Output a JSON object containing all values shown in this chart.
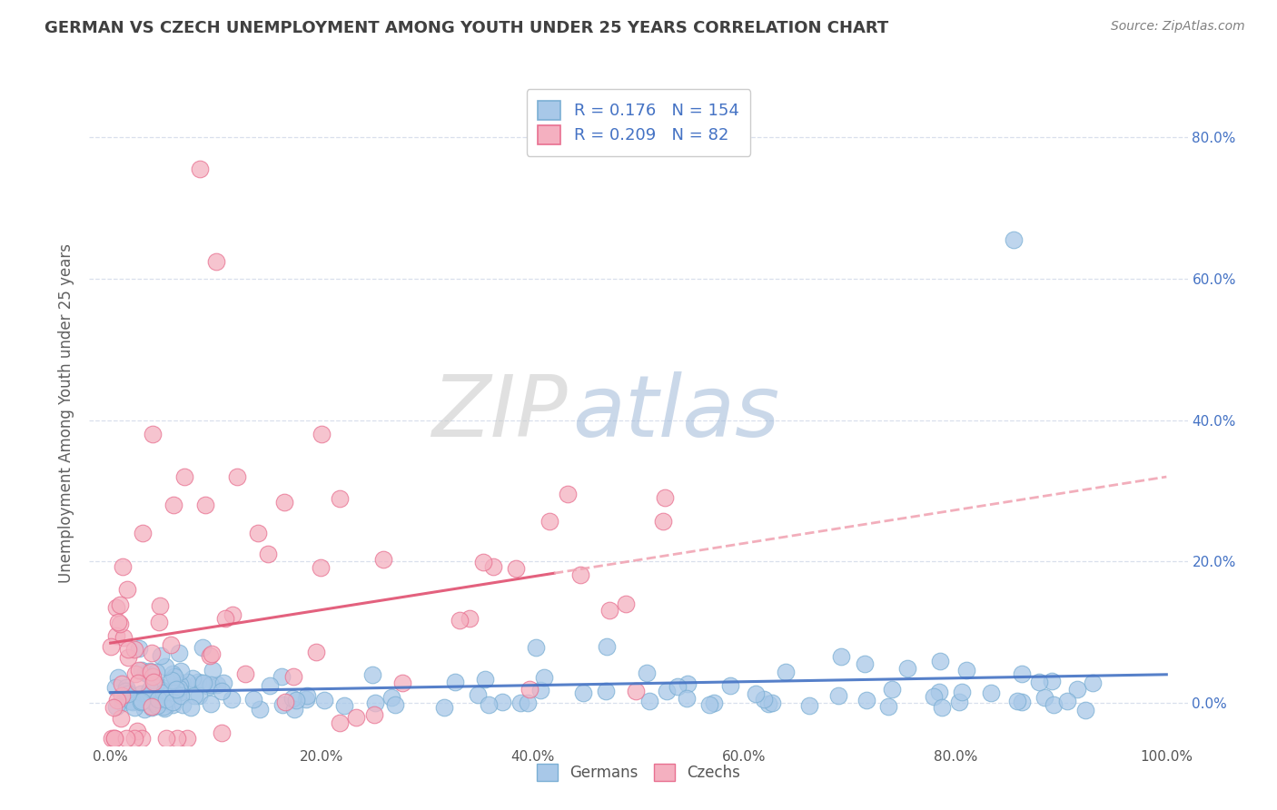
{
  "title": "GERMAN VS CZECH UNEMPLOYMENT AMONG YOUTH UNDER 25 YEARS CORRELATION CHART",
  "source": "Source: ZipAtlas.com",
  "ylabel": "Unemployment Among Youth under 25 years",
  "watermark_zip": "ZIP",
  "watermark_atlas": "atlas",
  "xlim": [
    -0.02,
    1.02
  ],
  "ylim": [
    -0.06,
    0.88
  ],
  "xtick_vals": [
    0.0,
    0.2,
    0.4,
    0.6,
    0.8,
    1.0
  ],
  "xtick_labels": [
    "0.0%",
    "20.0%",
    "40.0%",
    "60.0%",
    "80.0%",
    "100.0%"
  ],
  "ytick_vals": [
    0.0,
    0.2,
    0.4,
    0.6,
    0.8
  ],
  "ytick_labels": [
    "0.0%",
    "20.0%",
    "40.0%",
    "60.0%",
    "80.0%"
  ],
  "right_ytick_labels": [
    "0.0%",
    "20.0%",
    "40.0%",
    "60.0%",
    "80.0%"
  ],
  "german_scatter_color": "#a8c8e8",
  "german_scatter_edge": "#7bafd4",
  "czech_scatter_color": "#f4b0c0",
  "czech_scatter_edge": "#e87090",
  "german_line_color": "#4472c4",
  "czech_line_color_solid": "#e05070",
  "czech_line_color_dashed": "#f0a0b0",
  "background_color": "#ffffff",
  "grid_color": "#d0d8e8",
  "german_R": 0.176,
  "german_N": 154,
  "czech_R": 0.209,
  "czech_N": 82,
  "legend_label_german": "Germans",
  "legend_label_czech": "Czechs",
  "right_axis_color": "#4472c4",
  "title_color": "#404040",
  "source_color": "#808080",
  "ylabel_color": "#606060"
}
